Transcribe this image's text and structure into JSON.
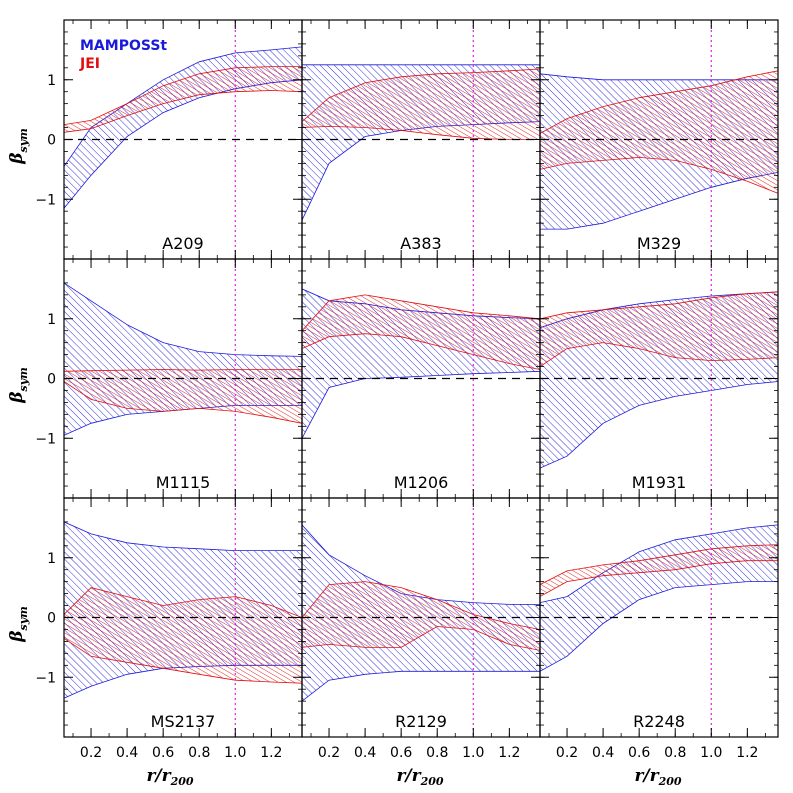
{
  "colors": {
    "mamposst": "#1a1adb",
    "jei": "#e01010",
    "reference": "#000000",
    "r200_line": "#e020e0"
  },
  "chart_data": {
    "type": "area",
    "grid": "3x3 panels with shared axes",
    "legend_placement": "top-left of first panel",
    "legend": [
      "MAMPOSSt",
      "JEI"
    ],
    "ylabel_main": "β",
    "ylabel_sub": "sym",
    "xlabel_main": "r/r",
    "xlabel_sub": "200",
    "xlim": [
      0.05,
      1.37
    ],
    "ylim": [
      -2.0,
      2.0
    ],
    "xticks": [
      0.2,
      0.4,
      0.6,
      0.8,
      1.0,
      1.2
    ],
    "xtick_labels": [
      "0.2",
      "0.4",
      "0.6",
      "0.8",
      "1.0",
      "1.2"
    ],
    "yticks": [
      -1,
      0,
      1
    ],
    "ytick_labels": [
      "−1",
      "0",
      "1"
    ],
    "reference_y": 0,
    "reference_x": 1.0,
    "x": [
      0.05,
      0.2,
      0.4,
      0.6,
      0.8,
      1.0,
      1.2,
      1.37
    ],
    "panels": [
      {
        "name": "A209",
        "mamposst": {
          "lower": [
            -1.15,
            -0.6,
            0.05,
            0.45,
            0.7,
            0.85,
            0.95,
            1.0
          ],
          "upper": [
            -0.45,
            0.2,
            0.6,
            1.0,
            1.3,
            1.45,
            1.5,
            1.55
          ]
        },
        "jei": {
          "lower": [
            0.12,
            0.18,
            0.4,
            0.6,
            0.75,
            0.8,
            0.82,
            0.8
          ],
          "upper": [
            0.25,
            0.32,
            0.6,
            0.9,
            1.1,
            1.2,
            1.22,
            1.22
          ]
        }
      },
      {
        "name": "A383",
        "mamposst": {
          "lower": [
            -1.35,
            -0.4,
            0.05,
            0.15,
            0.22,
            0.25,
            0.28,
            0.3
          ],
          "upper": [
            1.25,
            1.25,
            1.25,
            1.25,
            1.25,
            1.25,
            1.25,
            1.25
          ]
        },
        "jei": {
          "lower": [
            0.2,
            0.22,
            0.2,
            0.15,
            0.08,
            0.02,
            0.0,
            0.0
          ],
          "upper": [
            0.3,
            0.7,
            0.95,
            1.05,
            1.1,
            1.12,
            1.15,
            1.18
          ]
        }
      },
      {
        "name": "M329",
        "mamposst": {
          "lower": [
            -1.5,
            -1.5,
            -1.4,
            -1.2,
            -1.0,
            -0.8,
            -0.65,
            -0.55
          ],
          "upper": [
            1.1,
            1.05,
            1.0,
            1.0,
            1.0,
            1.0,
            1.0,
            1.0
          ]
        },
        "jei": {
          "lower": [
            -0.5,
            -0.4,
            -0.35,
            -0.3,
            -0.35,
            -0.5,
            -0.7,
            -0.9
          ],
          "upper": [
            0.1,
            0.35,
            0.55,
            0.7,
            0.8,
            0.9,
            1.05,
            1.15
          ]
        }
      },
      {
        "name": "M1115",
        "mamposst": {
          "lower": [
            -0.95,
            -0.75,
            -0.6,
            -0.55,
            -0.5,
            -0.45,
            -0.45,
            -0.45
          ],
          "upper": [
            1.6,
            1.3,
            0.9,
            0.6,
            0.45,
            0.4,
            0.38,
            0.37
          ]
        },
        "jei": {
          "lower": [
            -0.05,
            -0.35,
            -0.5,
            -0.55,
            -0.5,
            -0.55,
            -0.65,
            -0.75
          ],
          "upper": [
            0.12,
            0.13,
            0.14,
            0.15,
            0.14,
            0.15,
            0.15,
            0.15
          ]
        }
      },
      {
        "name": "M1206",
        "mamposst": {
          "lower": [
            -1.0,
            -0.15,
            0.0,
            0.02,
            0.05,
            0.08,
            0.1,
            0.12
          ],
          "upper": [
            1.5,
            1.3,
            1.25,
            1.15,
            1.1,
            1.05,
            1.02,
            1.0
          ]
        },
        "jei": {
          "lower": [
            0.5,
            0.7,
            0.75,
            0.7,
            0.55,
            0.4,
            0.25,
            0.15
          ],
          "upper": [
            0.8,
            1.3,
            1.4,
            1.3,
            1.2,
            1.1,
            1.05,
            1.0
          ]
        }
      },
      {
        "name": "M1931",
        "mamposst": {
          "lower": [
            -1.5,
            -1.3,
            -0.75,
            -0.45,
            -0.3,
            -0.2,
            -0.1,
            -0.05
          ],
          "upper": [
            0.85,
            1.0,
            1.15,
            1.25,
            1.32,
            1.38,
            1.42,
            1.45
          ]
        },
        "jei": {
          "lower": [
            0.2,
            0.5,
            0.6,
            0.5,
            0.35,
            0.3,
            0.32,
            0.35
          ],
          "upper": [
            1.0,
            1.1,
            1.15,
            1.2,
            1.25,
            1.35,
            1.42,
            1.45
          ]
        }
      },
      {
        "name": "MS2137",
        "mamposst": {
          "lower": [
            -1.35,
            -1.15,
            -0.95,
            -0.85,
            -0.82,
            -0.8,
            -0.8,
            -0.8
          ],
          "upper": [
            1.6,
            1.4,
            1.25,
            1.18,
            1.15,
            1.12,
            1.12,
            1.12
          ]
        },
        "jei": {
          "lower": [
            -0.35,
            -0.65,
            -0.75,
            -0.85,
            -0.95,
            -1.05,
            -1.08,
            -1.1
          ],
          "upper": [
            0.05,
            0.5,
            0.35,
            0.2,
            0.3,
            0.35,
            0.2,
            0.0
          ]
        }
      },
      {
        "name": "R2129",
        "mamposst": {
          "lower": [
            -1.4,
            -1.05,
            -0.95,
            -0.9,
            -0.9,
            -0.9,
            -0.9,
            -0.9
          ],
          "upper": [
            1.55,
            1.05,
            0.7,
            0.4,
            0.3,
            0.25,
            0.22,
            0.22
          ]
        },
        "jei": {
          "lower": [
            -0.5,
            -0.45,
            -0.5,
            -0.5,
            -0.15,
            -0.2,
            -0.45,
            -0.55
          ],
          "upper": [
            0.0,
            0.55,
            0.6,
            0.5,
            0.3,
            0.05,
            -0.1,
            -0.2
          ]
        }
      },
      {
        "name": "R2248",
        "mamposst": {
          "lower": [
            -0.9,
            -0.65,
            -0.1,
            0.3,
            0.5,
            0.55,
            0.6,
            0.6
          ],
          "upper": [
            0.25,
            0.35,
            0.75,
            1.1,
            1.3,
            1.4,
            1.5,
            1.55
          ]
        },
        "jei": {
          "lower": [
            0.35,
            0.6,
            0.7,
            0.75,
            0.8,
            0.9,
            0.95,
            0.95
          ],
          "upper": [
            0.55,
            0.78,
            0.88,
            0.95,
            1.05,
            1.15,
            1.2,
            1.22
          ]
        }
      }
    ]
  }
}
